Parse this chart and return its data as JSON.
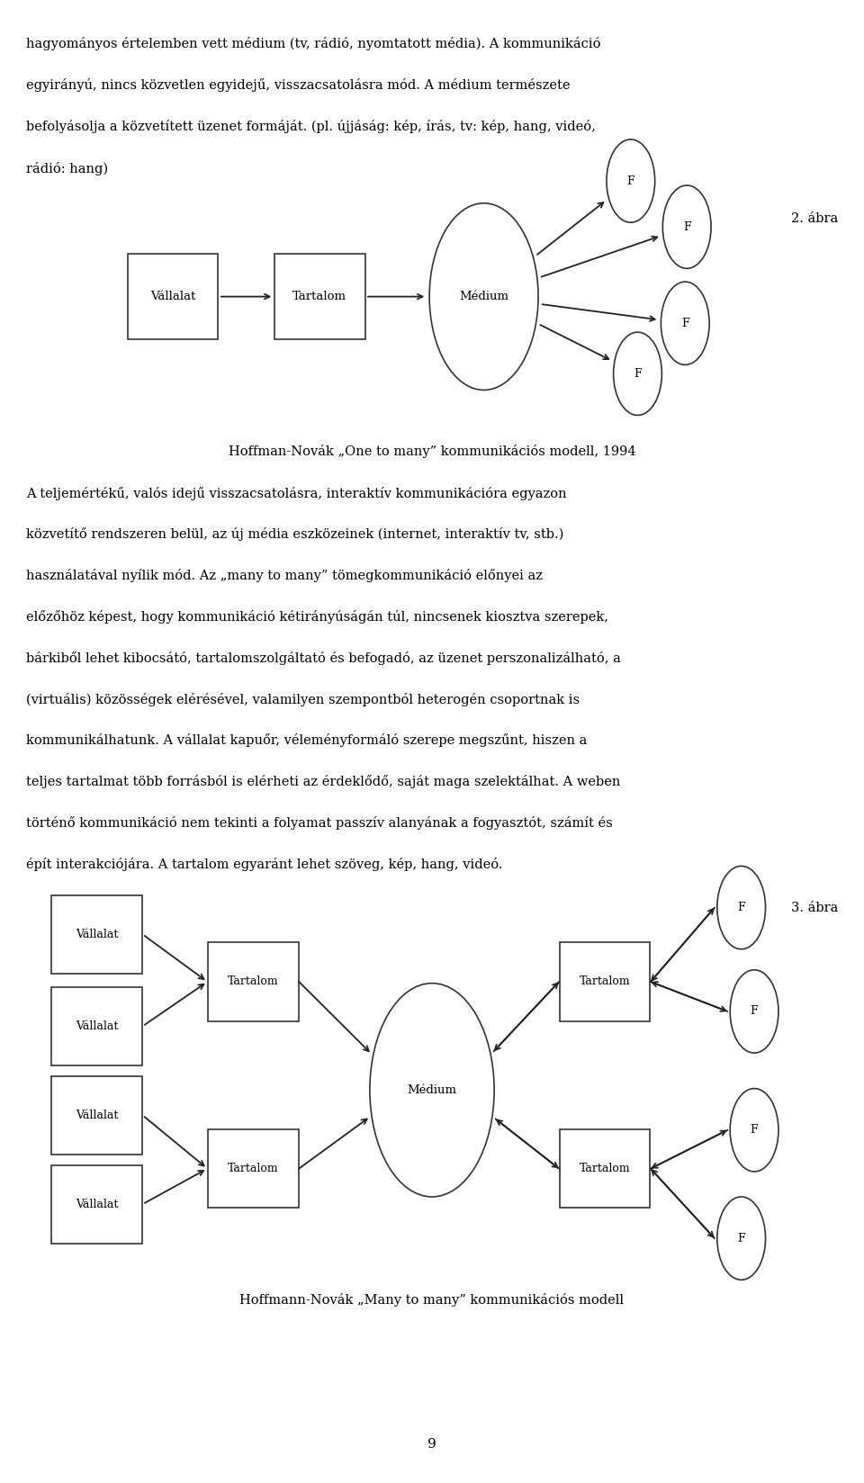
{
  "bg_color": "#ffffff",
  "text_color": "#000000",
  "font_family": "DejaVu Serif",
  "page_number": "9",
  "abra2_label": "2. ábra",
  "diagram1_caption": "Hoffman-Novák „One to many” kommunikációs modell, 1994",
  "abra3_label": "3. ábra",
  "diagram2_caption": "Hoffmann-Novák „Many to many” kommunikációs modell"
}
